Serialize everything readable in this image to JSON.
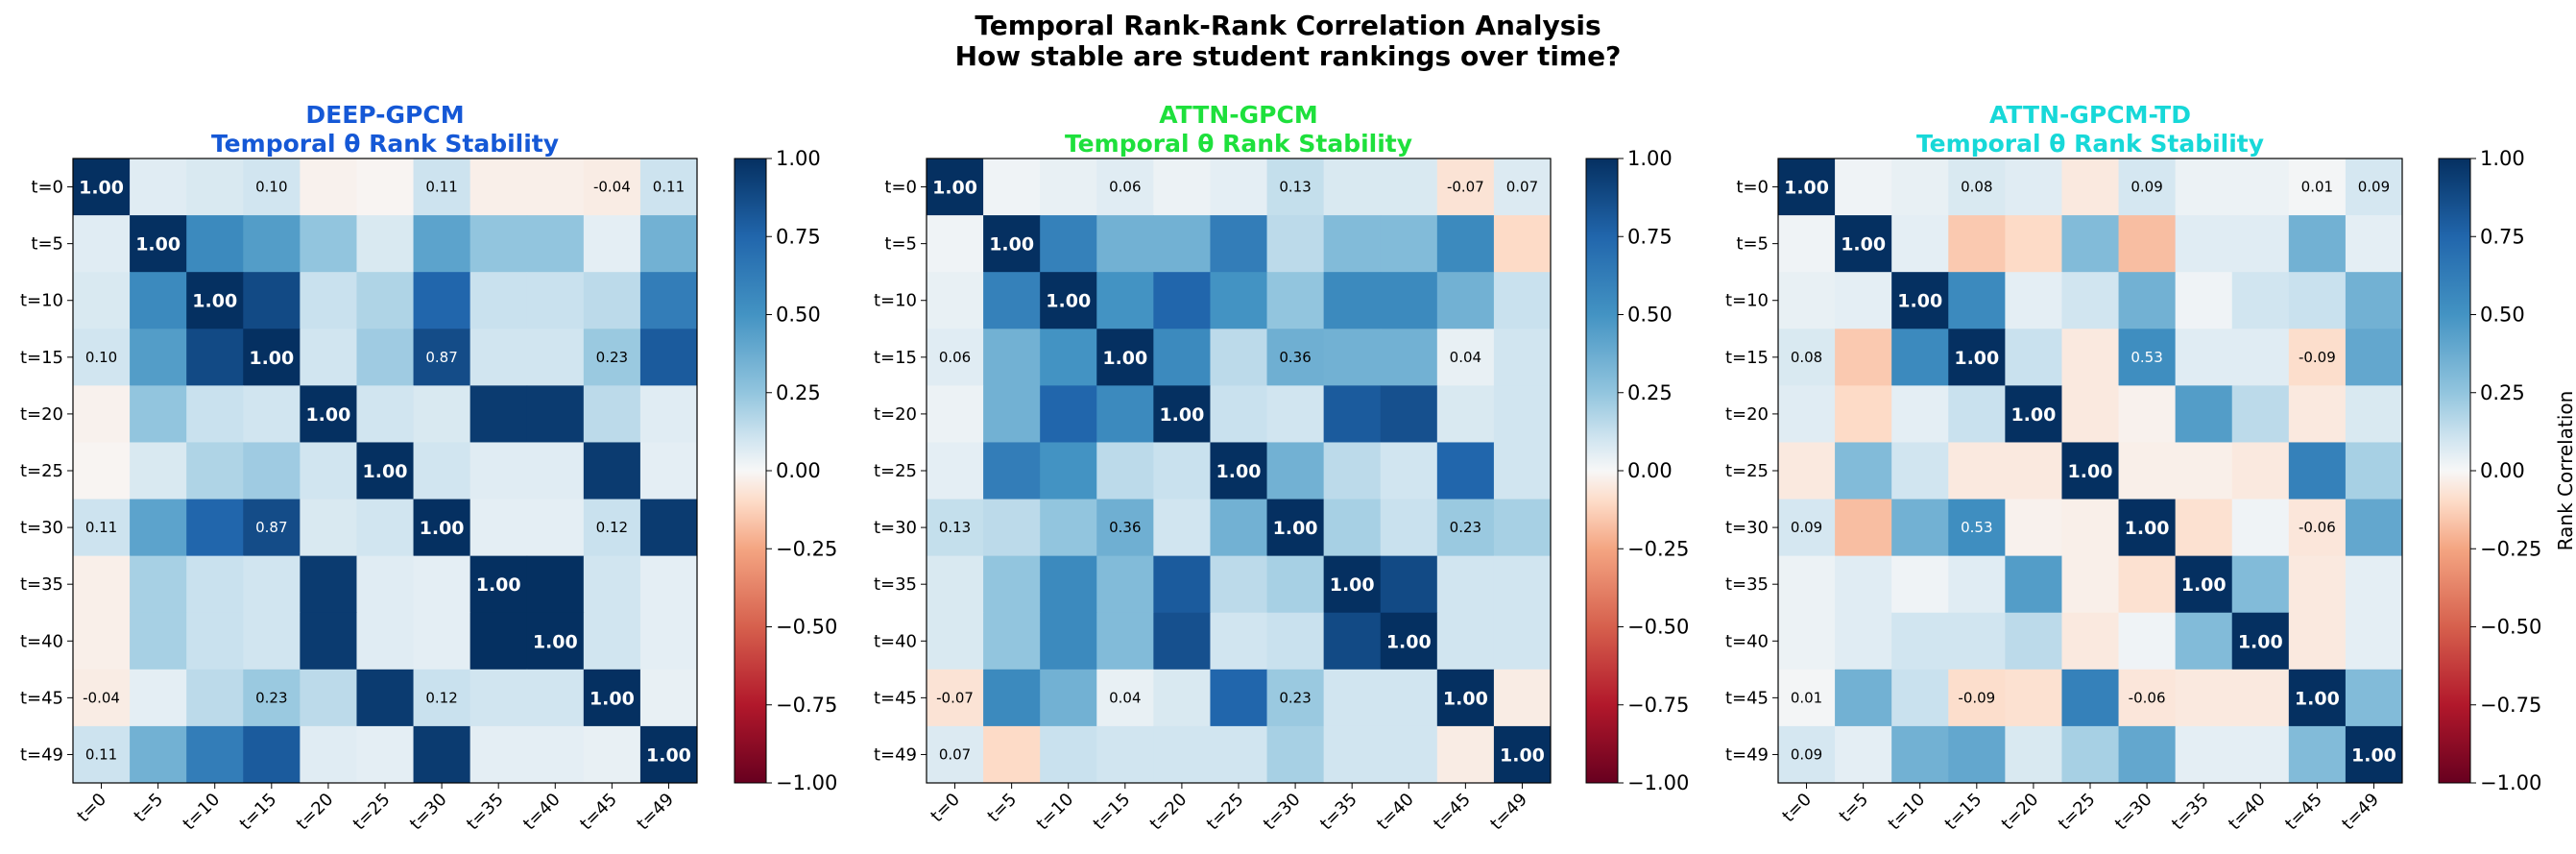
{
  "suptitle": [
    "Temporal Rank-Rank Correlation Analysis",
    "How stable are student rankings over time?"
  ],
  "colorbar": {
    "ticks": [
      "1.00",
      "0.75",
      "0.50",
      "0.25",
      "0.00",
      "−0.25",
      "−0.50",
      "−0.75",
      "−1.00"
    ],
    "label": "Rank Correlation",
    "colormap": "RdBu",
    "range": [
      -1,
      1
    ]
  },
  "chart_data": [
    {
      "type": "heatmap",
      "title": [
        "DEEP-GPCM",
        "Temporal θ Rank Stability"
      ],
      "title_color": "#1558d6",
      "x_ticks": [
        "t=0",
        "t=5",
        "t=10",
        "t=15",
        "t=20",
        "t=25",
        "t=30",
        "t=35",
        "t=40",
        "t=45",
        "t=49"
      ],
      "y_ticks": [
        "t=0",
        "t=5",
        "t=10",
        "t=15",
        "t=20",
        "t=25",
        "t=30",
        "t=35",
        "t=40",
        "t=45",
        "t=49"
      ],
      "annotated_cells": [
        [
          0,
          0
        ],
        [
          0,
          3
        ],
        [
          0,
          6
        ],
        [
          0,
          9
        ],
        [
          0,
          10
        ],
        [
          1,
          1
        ],
        [
          2,
          2
        ],
        [
          3,
          0
        ],
        [
          3,
          3
        ],
        [
          3,
          6
        ],
        [
          3,
          9
        ],
        [
          4,
          4
        ],
        [
          5,
          5
        ],
        [
          6,
          0
        ],
        [
          6,
          3
        ],
        [
          6,
          6
        ],
        [
          6,
          9
        ],
        [
          7,
          7
        ],
        [
          8,
          8
        ],
        [
          9,
          0
        ],
        [
          9,
          3
        ],
        [
          9,
          6
        ],
        [
          9,
          9
        ],
        [
          10,
          0
        ],
        [
          10,
          10
        ]
      ],
      "values": [
        [
          1.0,
          0.06,
          0.08,
          0.1,
          -0.02,
          -0.01,
          0.11,
          -0.03,
          -0.03,
          -0.04,
          0.11
        ],
        [
          0.06,
          1.0,
          0.55,
          0.45,
          0.25,
          0.08,
          0.42,
          0.25,
          0.25,
          0.05,
          0.35
        ],
        [
          0.08,
          0.55,
          1.0,
          0.88,
          0.12,
          0.18,
          0.75,
          0.12,
          0.12,
          0.15,
          0.62
        ],
        [
          0.1,
          0.45,
          0.88,
          1.0,
          0.1,
          0.22,
          0.87,
          0.1,
          0.1,
          0.23,
          0.8
        ],
        [
          -0.02,
          0.25,
          0.12,
          0.1,
          1.0,
          0.1,
          0.08,
          0.95,
          0.95,
          0.15,
          0.06
        ],
        [
          -0.01,
          0.08,
          0.18,
          0.22,
          0.1,
          1.0,
          0.1,
          0.06,
          0.06,
          0.95,
          0.05
        ],
        [
          0.11,
          0.42,
          0.75,
          0.87,
          0.08,
          0.1,
          1.0,
          0.05,
          0.05,
          0.12,
          0.95
        ],
        [
          -0.03,
          0.2,
          0.12,
          0.1,
          0.95,
          0.06,
          0.05,
          1.0,
          1.0,
          0.1,
          0.05
        ],
        [
          -0.03,
          0.2,
          0.12,
          0.1,
          0.95,
          0.06,
          0.05,
          1.0,
          1.0,
          0.1,
          0.05
        ],
        [
          -0.04,
          0.05,
          0.15,
          0.23,
          0.15,
          0.95,
          0.12,
          0.1,
          0.1,
          1.0,
          0.04
        ],
        [
          0.11,
          0.35,
          0.62,
          0.8,
          0.06,
          0.05,
          0.95,
          0.05,
          0.05,
          0.04,
          1.0
        ]
      ]
    },
    {
      "type": "heatmap",
      "title": [
        "ATTN-GPCM",
        "Temporal θ Rank Stability"
      ],
      "title_color": "#1ee03c",
      "x_ticks": [
        "t=0",
        "t=5",
        "t=10",
        "t=15",
        "t=20",
        "t=25",
        "t=30",
        "t=35",
        "t=40",
        "t=45",
        "t=49"
      ],
      "y_ticks": [
        "t=0",
        "t=5",
        "t=10",
        "t=15",
        "t=20",
        "t=25",
        "t=30",
        "t=35",
        "t=40",
        "t=45",
        "t=49"
      ],
      "annotated_cells": [
        [
          0,
          0
        ],
        [
          0,
          3
        ],
        [
          0,
          6
        ],
        [
          0,
          9
        ],
        [
          0,
          10
        ],
        [
          1,
          1
        ],
        [
          2,
          2
        ],
        [
          3,
          0
        ],
        [
          3,
          3
        ],
        [
          3,
          6
        ],
        [
          3,
          9
        ],
        [
          4,
          4
        ],
        [
          5,
          5
        ],
        [
          6,
          0
        ],
        [
          6,
          3
        ],
        [
          6,
          6
        ],
        [
          6,
          9
        ],
        [
          7,
          7
        ],
        [
          8,
          8
        ],
        [
          9,
          0
        ],
        [
          9,
          3
        ],
        [
          9,
          6
        ],
        [
          9,
          9
        ],
        [
          10,
          0
        ],
        [
          10,
          10
        ]
      ],
      "values": [
        [
          1.0,
          0.02,
          0.04,
          0.06,
          0.03,
          0.05,
          0.13,
          0.08,
          0.08,
          -0.07,
          0.07
        ],
        [
          0.02,
          1.0,
          0.6,
          0.35,
          0.35,
          0.62,
          0.15,
          0.3,
          0.3,
          0.55,
          -0.1
        ],
        [
          0.04,
          0.6,
          1.0,
          0.5,
          0.75,
          0.5,
          0.25,
          0.55,
          0.55,
          0.35,
          0.12
        ],
        [
          0.06,
          0.35,
          0.5,
          1.0,
          0.55,
          0.15,
          0.36,
          0.35,
          0.35,
          0.04,
          0.1
        ],
        [
          0.03,
          0.35,
          0.75,
          0.55,
          1.0,
          0.12,
          0.1,
          0.8,
          0.85,
          0.08,
          0.1
        ],
        [
          0.05,
          0.62,
          0.5,
          0.15,
          0.12,
          1.0,
          0.35,
          0.15,
          0.1,
          0.75,
          0.1
        ],
        [
          0.13,
          0.15,
          0.25,
          0.36,
          0.1,
          0.35,
          1.0,
          0.2,
          0.12,
          0.23,
          0.2
        ],
        [
          0.08,
          0.25,
          0.55,
          0.3,
          0.8,
          0.15,
          0.2,
          1.0,
          0.88,
          0.1,
          0.1
        ],
        [
          0.08,
          0.25,
          0.55,
          0.3,
          0.85,
          0.1,
          0.12,
          0.88,
          1.0,
          0.1,
          0.1
        ],
        [
          -0.07,
          0.55,
          0.35,
          0.04,
          0.08,
          0.75,
          0.23,
          0.1,
          0.1,
          1.0,
          -0.04
        ],
        [
          0.07,
          -0.1,
          0.12,
          0.1,
          0.1,
          0.1,
          0.2,
          0.1,
          0.1,
          -0.04,
          1.0
        ]
      ]
    },
    {
      "type": "heatmap",
      "title": [
        "ATTN-GPCM-TD",
        "Temporal θ Rank Stability"
      ],
      "title_color": "#17d8d8",
      "x_ticks": [
        "t=0",
        "t=5",
        "t=10",
        "t=15",
        "t=20",
        "t=25",
        "t=30",
        "t=35",
        "t=40",
        "t=45",
        "t=49"
      ],
      "y_ticks": [
        "t=0",
        "t=5",
        "t=10",
        "t=15",
        "t=20",
        "t=25",
        "t=30",
        "t=35",
        "t=40",
        "t=45",
        "t=49"
      ],
      "annotated_cells": [
        [
          0,
          0
        ],
        [
          0,
          3
        ],
        [
          0,
          6
        ],
        [
          0,
          9
        ],
        [
          0,
          10
        ],
        [
          1,
          1
        ],
        [
          2,
          2
        ],
        [
          3,
          0
        ],
        [
          3,
          3
        ],
        [
          3,
          6
        ],
        [
          3,
          9
        ],
        [
          4,
          4
        ],
        [
          5,
          5
        ],
        [
          6,
          0
        ],
        [
          6,
          3
        ],
        [
          6,
          6
        ],
        [
          6,
          9
        ],
        [
          7,
          7
        ],
        [
          8,
          8
        ],
        [
          9,
          0
        ],
        [
          9,
          3
        ],
        [
          9,
          6
        ],
        [
          9,
          9
        ],
        [
          10,
          0
        ],
        [
          10,
          10
        ]
      ],
      "values": [
        [
          1.0,
          0.02,
          0.04,
          0.08,
          0.06,
          -0.05,
          0.09,
          0.03,
          0.03,
          0.01,
          0.09
        ],
        [
          0.02,
          1.0,
          0.05,
          -0.15,
          -0.1,
          0.3,
          -0.18,
          0.06,
          0.06,
          0.35,
          0.05
        ],
        [
          0.04,
          0.05,
          1.0,
          0.55,
          0.05,
          0.1,
          0.35,
          0.02,
          0.1,
          0.12,
          0.35
        ],
        [
          0.08,
          -0.15,
          0.55,
          1.0,
          0.12,
          -0.05,
          0.53,
          0.06,
          0.06,
          -0.09,
          0.4
        ],
        [
          0.06,
          -0.1,
          0.05,
          0.12,
          1.0,
          -0.05,
          -0.02,
          0.45,
          0.15,
          -0.05,
          0.08
        ],
        [
          -0.05,
          0.3,
          0.1,
          -0.05,
          -0.05,
          1.0,
          -0.03,
          -0.03,
          -0.05,
          0.6,
          0.2
        ],
        [
          0.09,
          -0.18,
          0.35,
          0.53,
          -0.02,
          -0.03,
          1.0,
          -0.08,
          0.02,
          -0.06,
          0.4
        ],
        [
          0.03,
          0.06,
          0.02,
          0.06,
          0.45,
          -0.03,
          -0.08,
          1.0,
          0.3,
          -0.05,
          0.05
        ],
        [
          0.03,
          0.06,
          0.1,
          0.1,
          0.15,
          -0.05,
          0.02,
          0.3,
          1.0,
          -0.05,
          0.05
        ],
        [
          0.01,
          0.35,
          0.12,
          -0.09,
          -0.08,
          0.6,
          -0.06,
          -0.05,
          -0.05,
          1.0,
          0.3
        ],
        [
          0.09,
          0.05,
          0.35,
          0.4,
          0.08,
          0.2,
          0.4,
          0.05,
          0.05,
          0.3,
          1.0
        ]
      ]
    }
  ]
}
